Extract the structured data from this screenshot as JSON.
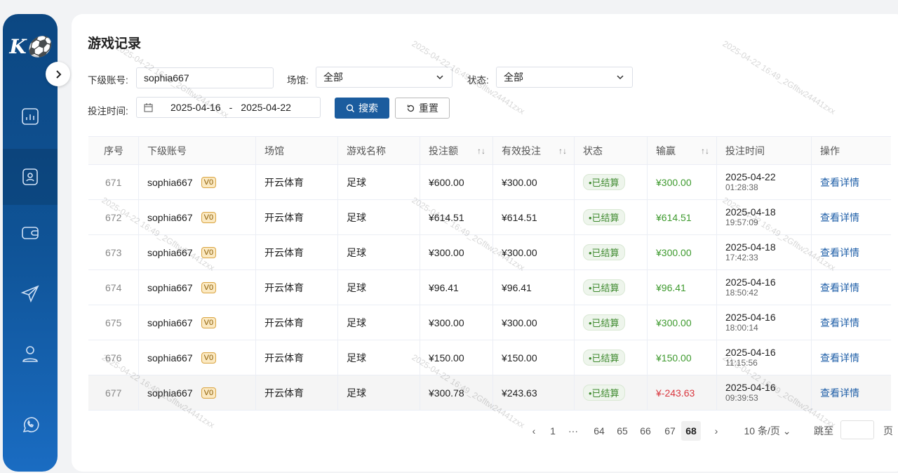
{
  "sidebar": {
    "logo": "K⚽",
    "items": [
      "chart-icon",
      "user-card-icon",
      "wallet-icon",
      "send-icon",
      "user-icon",
      "whatsapp-icon"
    ],
    "active": 1,
    "color": "#0f5396"
  },
  "page": {
    "title": "游戏记录"
  },
  "filters": {
    "account_label": "下级账号:",
    "account_value": "sophia667",
    "venue_label": "场馆:",
    "venue_value": "全部",
    "status_label": "状态:",
    "status_value": "全部",
    "time_label": "投注时间:",
    "date_from": "2025-04-16",
    "date_sep": "-",
    "date_to": "2025-04-22",
    "search": "搜索",
    "reset": "重置"
  },
  "table": {
    "headers": [
      "序号",
      "下级账号",
      "场馆",
      "游戏名称",
      "投注额",
      "有效投注",
      "状态",
      "输赢",
      "投注时间",
      "操作"
    ],
    "rows": [
      {
        "no": "671",
        "acct": "sophia667",
        "lvl": "V0",
        "venue": "开云体育",
        "game": "足球",
        "bet": "¥600.00",
        "valid": "¥300.00",
        "status": "•已结算",
        "win": "¥300.00",
        "date": "2025-04-22",
        "time": "01:28:38",
        "action": "查看详情"
      },
      {
        "no": "672",
        "acct": "sophia667",
        "lvl": "V0",
        "venue": "开云体育",
        "game": "足球",
        "bet": "¥614.51",
        "valid": "¥614.51",
        "status": "•已结算",
        "win": "¥614.51",
        "date": "2025-04-18",
        "time": "19:57:09",
        "action": "查看详情"
      },
      {
        "no": "673",
        "acct": "sophia667",
        "lvl": "V0",
        "venue": "开云体育",
        "game": "足球",
        "bet": "¥300.00",
        "valid": "¥300.00",
        "status": "•已结算",
        "win": "¥300.00",
        "date": "2025-04-18",
        "time": "17:42:33",
        "action": "查看详情"
      },
      {
        "no": "674",
        "acct": "sophia667",
        "lvl": "V0",
        "venue": "开云体育",
        "game": "足球",
        "bet": "¥96.41",
        "valid": "¥96.41",
        "status": "•已结算",
        "win": "¥96.41",
        "date": "2025-04-16",
        "time": "18:50:42",
        "action": "查看详情"
      },
      {
        "no": "675",
        "acct": "sophia667",
        "lvl": "V0",
        "venue": "开云体育",
        "game": "足球",
        "bet": "¥300.00",
        "valid": "¥300.00",
        "status": "•已结算",
        "win": "¥300.00",
        "date": "2025-04-16",
        "time": "18:00:14",
        "action": "查看详情"
      },
      {
        "no": "676",
        "acct": "sophia667",
        "lvl": "V0",
        "venue": "开云体育",
        "game": "足球",
        "bet": "¥150.00",
        "valid": "¥150.00",
        "status": "•已结算",
        "win": "¥150.00",
        "date": "2025-04-16",
        "time": "11:15:56",
        "action": "查看详情"
      },
      {
        "no": "677",
        "acct": "sophia667",
        "lvl": "V0",
        "venue": "开云体育",
        "game": "足球",
        "bet": "¥300.78",
        "valid": "¥243.63",
        "status": "•已结算",
        "win": "¥-243.63",
        "date": "2025-04-16",
        "time": "09:39:53",
        "action": "查看详情"
      }
    ]
  },
  "pagination": {
    "pages": [
      "1",
      "···",
      "64",
      "65",
      "66",
      "67",
      "68"
    ],
    "current": "68",
    "page_size": "10 条/页",
    "jump_label": "跳至",
    "jump_suffix": "页"
  },
  "watermark": "2025-04-22 16:49_2Gfltw24441zxx",
  "colors": {
    "win": "#3e9a2e",
    "loss": "#d9363e",
    "primary": "#1f5fa8"
  }
}
